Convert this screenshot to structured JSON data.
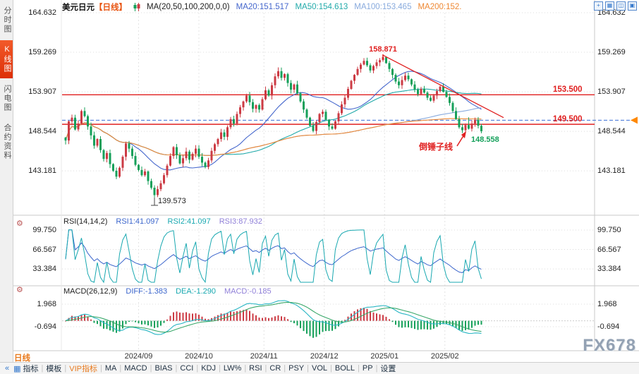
{
  "colors": {
    "up": "#cc3b44",
    "down": "#16a05a",
    "ma20": "#4466cc",
    "ma50": "#22aaaa",
    "ma100": "#88aadd",
    "ma200": "#ee8833",
    "level_red": "#e02020",
    "dashed_blue": "#3a6fd8",
    "rsi1": "#3c66cc",
    "rsi2": "#18a8b0",
    "rsi3": "#8f7fd8",
    "diff": "#2ab6c4",
    "dea": "#3aa86a",
    "title_orange": "#e85512",
    "period_orange": "#e87a1e",
    "last_green": "#13a05a"
  },
  "header": {
    "symbol": "美元日元",
    "period_tag": "【日线】",
    "ma_group": "MA(20,50,100,200,0,0)",
    "ma20": "MA20:151.517",
    "ma50": "MA50:154.613",
    "ma100": "MA100:153.465",
    "ma200": "MA200:152."
  },
  "top_icons": [
    {
      "name": "crosshair-icon",
      "glyph": "+"
    },
    {
      "name": "grid-layout-icon",
      "glyph": "▦"
    },
    {
      "name": "split-view-icon",
      "glyph": "◫"
    },
    {
      "name": "panel-view-icon",
      "glyph": "▣"
    }
  ],
  "icons": {
    "settings": "⚙",
    "collapse": "«",
    "indicator_grid": "▦"
  },
  "sidebar": {
    "items": [
      {
        "label": "分时图"
      },
      {
        "label": "K线图"
      },
      {
        "label": "闪电图"
      },
      {
        "label": "合约资料"
      }
    ]
  },
  "rsi": {
    "title": "RSI(14,14,2)",
    "rsi1": "RSI1:41.097",
    "rsi2": "RSI2:41.097",
    "rsi3": "RSI3:87.932"
  },
  "macd": {
    "title": "MACD(26,12,9)",
    "diff": "DIFF:-1.383",
    "dea": "DEA:-1.290",
    "macd": "MACD:-0.185"
  },
  "annotations": {
    "peak": "158.871",
    "trough": "139.573",
    "last_price": "148.558",
    "pattern": "倒锤子线",
    "resistance": "153.500",
    "support": "149.500"
  },
  "bottom": {
    "period_label": "日线",
    "toolbar": [
      {
        "label": "指标"
      },
      {
        "label": "模板"
      },
      {
        "label": "VIP指标",
        "accent": true
      },
      {
        "label": "MA"
      },
      {
        "label": "MACD"
      },
      {
        "label": "BIAS"
      },
      {
        "label": "CCI"
      },
      {
        "label": "KDJ"
      },
      {
        "label": "LW%"
      },
      {
        "label": "RSI"
      },
      {
        "label": "CR"
      },
      {
        "label": "PSY"
      },
      {
        "label": "VOL"
      },
      {
        "label": "BOLL"
      },
      {
        "label": "PP"
      },
      {
        "label": "设置"
      }
    ]
  },
  "watermark": "FX678",
  "chart_data": {
    "type": "candlestick+indicators",
    "instrument": "美元日元 (USD/JPY)",
    "interval": "日线",
    "closes": [
      147.3,
      149.9,
      150.4,
      148.8,
      149.6,
      151.3,
      150.6,
      149.2,
      148.0,
      146.6,
      147.5,
      146.0,
      144.8,
      145.6,
      144.1,
      143.2,
      142.4,
      143.6,
      145.1,
      146.9,
      146.2,
      145.2,
      144.0,
      143.3,
      142.6,
      143.1,
      141.8,
      140.9,
      139.9,
      140.7,
      141.5,
      142.6,
      143.9,
      145.2,
      146.4,
      145.3,
      144.2,
      144.9,
      145.8,
      144.7,
      145.5,
      146.2,
      145.1,
      144.3,
      143.7,
      144.6,
      145.9,
      146.8,
      147.5,
      148.4,
      147.8,
      149.1,
      150.2,
      149.6,
      150.9,
      151.8,
      152.6,
      153.4,
      152.5,
      151.6,
      152.1,
      151.5,
      152.9,
      154.1,
      153.4,
      154.8,
      156.0,
      156.7,
      155.8,
      156.3,
      155.1,
      154.2,
      154.9,
      153.7,
      152.6,
      151.5,
      150.4,
      149.3,
      148.6,
      149.8,
      150.9,
      151.2,
      150.1,
      149.2,
      148.9,
      149.9,
      151.0,
      152.2,
      153.1,
      154.3,
      155.4,
      156.2,
      157.0,
      157.6,
      158.1,
      157.5,
      156.8,
      157.4,
      157.9,
      158.2,
      158.6,
      157.8,
      157.0,
      156.2,
      155.3,
      154.8,
      155.5,
      156.1,
      155.6,
      154.9,
      154.2,
      153.6,
      154.3,
      153.8,
      153.1,
      152.7,
      153.4,
      154.0,
      154.6,
      153.9,
      153.2,
      152.4,
      151.3,
      150.2,
      149.1,
      148.7,
      149.4,
      148.9,
      149.6,
      150.1,
      149.3,
      148.558
    ],
    "key_points": {
      "low": {
        "index": 28,
        "value": 139.573
      },
      "high": {
        "index": 100,
        "value": 158.871
      },
      "last": 148.558,
      "hammer_index": 127
    },
    "levels": {
      "resistance": 153.5,
      "support": 149.5,
      "dashed": 150.05
    },
    "trendline": {
      "from_index": 100,
      "from_price": 158.871,
      "to_index": 138,
      "to_price": 150.4
    },
    "x_axis": [
      {
        "label": "2024/09",
        "day": 23
      },
      {
        "label": "2024/10",
        "day": 42
      },
      {
        "label": "2024/11",
        "day": 62.5
      },
      {
        "label": "2024/12",
        "day": 81.5
      },
      {
        "label": "2025/01",
        "day": 100.5
      },
      {
        "label": "2025/02",
        "day": 119.5
      }
    ],
    "y_axis": [
      {
        "label": "164.632",
        "value": 164.632
      },
      {
        "label": "159.269",
        "value": 159.269
      },
      {
        "label": "153.907",
        "value": 153.907
      },
      {
        "label": "148.544",
        "value": 148.544
      },
      {
        "label": "143.181",
        "value": 143.181
      }
    ],
    "rsi_axis": [
      {
        "label": "99.750",
        "value": 99.75
      },
      {
        "label": "66.567",
        "value": 66.567
      },
      {
        "label": "33.384",
        "value": 33.384
      }
    ],
    "macd_axis": [
      {
        "label": "1.968",
        "value": 1.968
      },
      {
        "label": "-0.694",
        "value": -0.694
      }
    ],
    "rsi_periods": [
      14,
      14,
      2
    ],
    "macd_params": [
      26,
      12,
      9
    ]
  }
}
